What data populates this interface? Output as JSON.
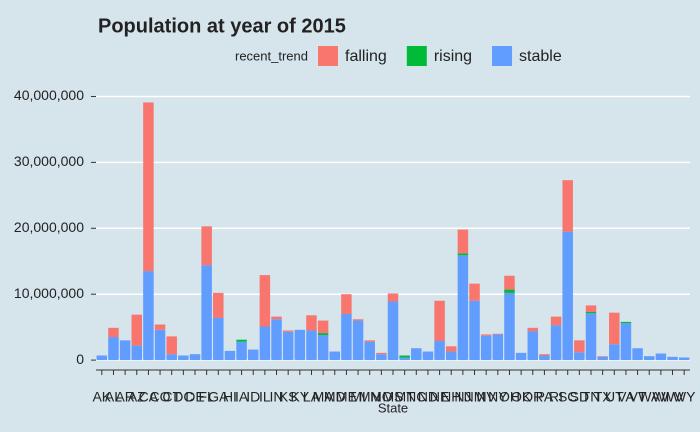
{
  "chart_data": {
    "type": "stacked_bar",
    "title": "Population at year of 2015",
    "x_label": "State",
    "legend_title": "recent_trend",
    "legend_position": "top",
    "grid": true,
    "categories": [
      "AK",
      "AL",
      "AR",
      "AZ",
      "CA",
      "CO",
      "CT",
      "DC",
      "DE",
      "FL",
      "GA",
      "HI",
      "IA",
      "ID",
      "IL",
      "IN",
      "KS",
      "KY",
      "LA",
      "MA",
      "MD",
      "ME",
      "MI",
      "MN",
      "MO",
      "MS",
      "MT",
      "NC",
      "ND",
      "NE",
      "NH",
      "NJ",
      "NM",
      "NV",
      "NY",
      "OH",
      "OK",
      "OR",
      "PA",
      "RI",
      "SC",
      "SD",
      "TN",
      "TX",
      "UT",
      "VA",
      "VT",
      "WA",
      "WI",
      "WV",
      "WY"
    ],
    "series": [
      {
        "name": "falling",
        "color": "#F8766D",
        "values": [
          0,
          1400000,
          0,
          4700000,
          25600000,
          800000,
          2700000,
          0,
          0,
          5900000,
          3800000,
          0,
          0,
          0,
          7800000,
          400000,
          200000,
          0,
          2300000,
          1900000,
          0,
          3000000,
          200000,
          200000,
          200000,
          1200000,
          0,
          0,
          0,
          6100000,
          800000,
          3600000,
          2600000,
          200000,
          100000,
          2100000,
          0,
          500000,
          200000,
          1300000,
          7800000,
          1800000,
          1000000,
          100000,
          4800000,
          0,
          0,
          0,
          0,
          0,
          0
        ]
      },
      {
        "name": "rising",
        "color": "#00BA38",
        "values": [
          0,
          0,
          0,
          0,
          0,
          0,
          0,
          0,
          0,
          0,
          0,
          0,
          300000,
          0,
          0,
          0,
          0,
          0,
          0,
          300000,
          0,
          0,
          0,
          0,
          0,
          0,
          300000,
          0,
          0,
          0,
          0,
          300000,
          0,
          0,
          0,
          500000,
          0,
          0,
          0,
          0,
          0,
          0,
          200000,
          0,
          0,
          200000,
          0,
          0,
          0,
          0,
          0
        ]
      },
      {
        "name": "stable",
        "color": "#619CFF",
        "values": [
          700000,
          3500000,
          3000000,
          2200000,
          13500000,
          4600000,
          900000,
          700000,
          900000,
          14400000,
          6400000,
          1400000,
          2800000,
          1600000,
          5100000,
          6200000,
          4300000,
          4600000,
          4500000,
          3800000,
          1300000,
          7000000,
          6000000,
          2800000,
          900000,
          8900000,
          400000,
          1800000,
          1300000,
          2900000,
          1300000,
          15900000,
          9000000,
          3700000,
          3900000,
          10200000,
          1100000,
          4400000,
          700000,
          5300000,
          19500000,
          1200000,
          7100000,
          500000,
          2400000,
          5600000,
          1800000,
          600000,
          1000000,
          500000,
          400000
        ]
      }
    ],
    "ylim": [
      -1500000,
      42500000
    ],
    "yticks": [
      0,
      {
        "value": 10000000,
        "label": "10,000,000"
      },
      {
        "value": 20000000,
        "label": "20,000,000"
      },
      {
        "value": 30000000,
        "label": "30,000,000"
      },
      {
        "value": 40000000,
        "label": "40,000,000"
      }
    ]
  }
}
